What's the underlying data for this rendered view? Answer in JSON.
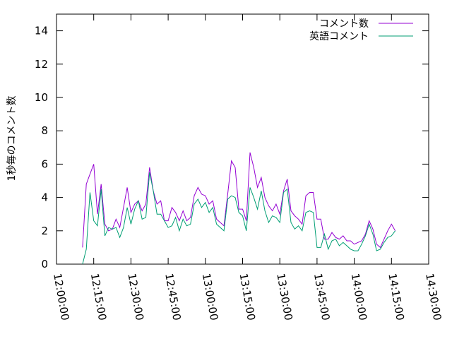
{
  "chart_data": {
    "type": "line",
    "title": "",
    "xlabel": "",
    "ylabel": "1秒毎のコメント数",
    "xlim": [
      "12:00:00",
      "14:30:00"
    ],
    "ylim": [
      0,
      15
    ],
    "x_ticks": [
      "12:00:00",
      "12:15:00",
      "12:30:00",
      "12:45:00",
      "13:00:00",
      "13:15:00",
      "13:30:00",
      "13:45:00",
      "14:00:00",
      "14:15:00",
      "14:30:00"
    ],
    "y_ticks": [
      "0",
      "2",
      "4",
      "6",
      "8",
      "10",
      "12",
      "14"
    ],
    "legend_position": "top-right",
    "grid": false,
    "x": [
      "12:10:30",
      "12:12:00",
      "12:13:30",
      "12:15:00",
      "12:16:30",
      "12:18:00",
      "12:19:30",
      "12:21:00",
      "12:22:30",
      "12:24:00",
      "12:25:30",
      "12:27:00",
      "12:28:30",
      "12:30:00",
      "12:31:30",
      "12:33:00",
      "12:34:30",
      "12:36:00",
      "12:37:30",
      "12:39:00",
      "12:40:30",
      "12:42:00",
      "12:43:30",
      "12:45:00",
      "12:46:30",
      "12:48:00",
      "12:49:30",
      "12:51:00",
      "12:52:30",
      "12:54:00",
      "12:55:30",
      "12:57:00",
      "12:58:30",
      "13:00:00",
      "13:01:30",
      "13:03:00",
      "13:04:30",
      "13:06:00",
      "13:07:30",
      "13:09:00",
      "13:10:30",
      "13:12:00",
      "13:13:30",
      "13:15:00",
      "13:16:30",
      "13:18:00",
      "13:19:30",
      "13:21:00",
      "13:22:30",
      "13:24:00",
      "13:25:30",
      "13:27:00",
      "13:28:30",
      "13:30:00",
      "13:31:30",
      "13:33:00",
      "13:34:30",
      "13:36:00",
      "13:37:30",
      "13:39:00",
      "13:40:30",
      "13:42:00",
      "13:43:30",
      "13:45:00",
      "13:46:30",
      "13:48:00",
      "13:49:30",
      "13:51:00",
      "13:52:30",
      "13:54:00",
      "13:55:30",
      "13:57:00",
      "13:58:30",
      "14:00:00",
      "14:01:30",
      "14:03:00",
      "14:04:30",
      "14:06:00",
      "14:07:30",
      "14:09:00",
      "14:10:30",
      "14:12:00",
      "14:13:30",
      "14:15:00",
      "14:16:30"
    ],
    "series": [
      {
        "name": "コメント数",
        "color": "#9400d3",
        "values": [
          1.0,
          4.8,
          5.4,
          6.0,
          3.0,
          4.8,
          2.4,
          2.0,
          2.1,
          2.7,
          2.2,
          3.4,
          4.6,
          3.1,
          3.6,
          3.8,
          3.2,
          3.6,
          5.8,
          4.4,
          3.6,
          3.8,
          2.6,
          2.6,
          3.4,
          3.1,
          2.6,
          3.2,
          2.6,
          2.8,
          4.1,
          4.6,
          4.2,
          4.1,
          3.6,
          3.8,
          2.7,
          2.5,
          2.3,
          4.2,
          6.2,
          5.8,
          3.3,
          3.3,
          2.6,
          6.7,
          5.8,
          4.6,
          5.2,
          4.0,
          3.5,
          3.2,
          3.6,
          3.0,
          4.4,
          5.1,
          3.2,
          2.9,
          2.7,
          2.4,
          4.1,
          4.3,
          4.3,
          2.7,
          2.7,
          1.5,
          1.5,
          1.9,
          1.6,
          1.5,
          1.7,
          1.4,
          1.4,
          1.2,
          1.3,
          1.4,
          1.8,
          2.6,
          2.1,
          1.2,
          1.0,
          1.5,
          2.0,
          2.4,
          2.0
        ]
      },
      {
        "name": "英語コメント",
        "color": "#009e73",
        "values": [
          0.0,
          0.9,
          4.3,
          2.6,
          2.3,
          4.5,
          1.7,
          2.2,
          2.1,
          2.2,
          1.6,
          2.2,
          3.4,
          2.4,
          3.3,
          3.8,
          2.7,
          2.8,
          5.5,
          4.4,
          3.0,
          3.0,
          2.6,
          2.2,
          2.3,
          2.8,
          2.0,
          2.7,
          2.3,
          2.4,
          3.6,
          3.9,
          3.4,
          3.7,
          3.1,
          3.4,
          2.4,
          2.2,
          2.0,
          3.9,
          4.1,
          4.0,
          3.1,
          2.9,
          2.0,
          4.6,
          4.0,
          3.3,
          4.4,
          3.2,
          2.5,
          2.9,
          2.8,
          2.5,
          4.3,
          4.5,
          2.5,
          2.1,
          2.3,
          2.0,
          3.1,
          3.2,
          3.1,
          1.0,
          1.0,
          1.8,
          0.9,
          1.4,
          1.5,
          1.1,
          1.3,
          1.1,
          0.9,
          0.8,
          0.8,
          1.2,
          1.7,
          2.4,
          1.8,
          0.8,
          0.9,
          1.3,
          1.6,
          1.7,
          2.0
        ]
      }
    ]
  }
}
